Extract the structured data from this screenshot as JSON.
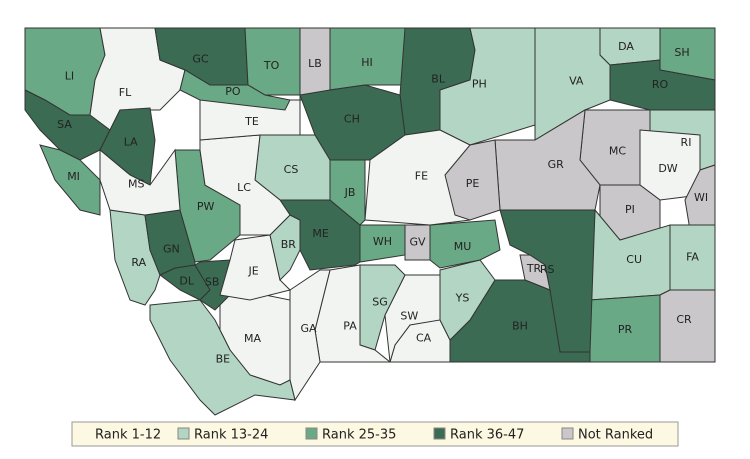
{
  "map": {
    "counties": [
      {
        "label": "LI",
        "category": 2
      },
      {
        "label": "FL",
        "category": 0
      },
      {
        "label": "GC",
        "category": 3
      },
      {
        "label": "TO",
        "category": 2
      },
      {
        "label": "LB",
        "category": 4
      },
      {
        "label": "HI",
        "category": 2
      },
      {
        "label": "BL",
        "category": 3
      },
      {
        "label": "PH",
        "category": 1
      },
      {
        "label": "VA",
        "category": 1
      },
      {
        "label": "DA",
        "category": 1
      },
      {
        "label": "SH",
        "category": 2
      },
      {
        "label": "RO",
        "category": 3
      },
      {
        "label": "RI",
        "category": 1
      },
      {
        "label": "MC",
        "category": 4
      },
      {
        "label": "DW",
        "category": 0
      },
      {
        "label": "GR",
        "category": 4
      },
      {
        "label": "PI",
        "category": 4
      },
      {
        "label": "WI",
        "category": 4
      },
      {
        "label": "CU",
        "category": 1
      },
      {
        "label": "FA",
        "category": 1
      },
      {
        "label": "CR",
        "category": 4
      },
      {
        "label": "PR",
        "category": 2
      },
      {
        "label": "RS",
        "category": 3
      },
      {
        "label": "TR",
        "category": 4
      },
      {
        "label": "BH",
        "category": 3
      },
      {
        "label": "CA",
        "category": 0
      },
      {
        "label": "YS",
        "category": 1
      },
      {
        "label": "SW",
        "category": 0
      },
      {
        "label": "SG",
        "category": 1
      },
      {
        "label": "PA",
        "category": 0
      },
      {
        "label": "GA",
        "category": 0
      },
      {
        "label": "MA",
        "category": 0
      },
      {
        "label": "BE",
        "category": 1
      },
      {
        "label": "RA",
        "category": 1
      },
      {
        "label": "DL",
        "category": 3
      },
      {
        "label": "SB",
        "category": 3
      },
      {
        "label": "GN",
        "category": 3
      },
      {
        "label": "PW",
        "category": 2
      },
      {
        "label": "JE",
        "category": 0
      },
      {
        "label": "BR",
        "category": 1
      },
      {
        "label": "ME",
        "category": 3
      },
      {
        "label": "WH",
        "category": 2
      },
      {
        "label": "GV",
        "category": 4
      },
      {
        "label": "MU",
        "category": 2
      },
      {
        "label": "JB",
        "category": 2
      },
      {
        "label": "CS",
        "category": 1
      },
      {
        "label": "LC",
        "category": 0
      },
      {
        "label": "TE",
        "category": 0
      },
      {
        "label": "CH",
        "category": 3
      },
      {
        "label": "FE",
        "category": 0
      },
      {
        "label": "PE",
        "category": 4
      },
      {
        "label": "PO",
        "category": 2
      },
      {
        "label": "SA",
        "category": 3
      },
      {
        "label": "LA",
        "category": 3
      },
      {
        "label": "MI",
        "category": 2
      },
      {
        "label": "MS",
        "category": 0
      }
    ],
    "legend": [
      {
        "label": "Rank 1-12",
        "color": "#f2f4f2"
      },
      {
        "label": "Rank 13-24",
        "color": "#b3d5c3"
      },
      {
        "label": "Rank 25-35",
        "color": "#6aa985"
      },
      {
        "label": "Rank 36-47",
        "color": "#3b6b52"
      },
      {
        "label": "Not Ranked",
        "color": "#c9c7c9"
      }
    ]
  }
}
